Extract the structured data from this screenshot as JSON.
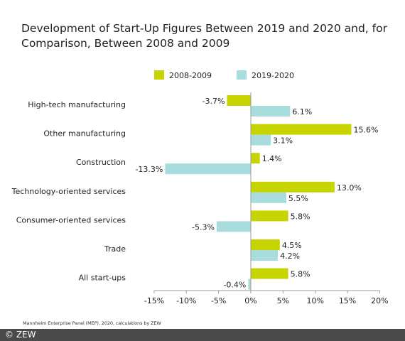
{
  "title": "Development of Start-Up Figures Between 2019 and 2020 and, for Comparison, Between 2008 and 2009",
  "source_note": "Mannheim Enterprise Panel (MEP), 2020, calculations by ZEW",
  "footer": "© ZEW",
  "colors": {
    "series_2008": "#c8d400",
    "series_2019": "#a9dcdc",
    "axis": "#999999",
    "text": "#222222"
  },
  "chart_data": {
    "type": "bar",
    "orientation": "horizontal",
    "title": "Development of Start-Up Figures Between 2019 and 2020 and, for Comparison, Between 2008 and 2009",
    "categories": [
      "High-tech manufacturing",
      "Other manufacturing",
      "Construction",
      "Technology-oriented services",
      "Consumer-oriented services",
      "Trade",
      "All start-ups"
    ],
    "series": [
      {
        "name": "2008-2009",
        "values": [
          -3.7,
          15.6,
          1.4,
          13.0,
          5.8,
          4.5,
          5.8
        ],
        "labels": [
          "-3.7%",
          "15.6%",
          "1.4%",
          "13.0%",
          "5.8%",
          "4.5%",
          "5.8%"
        ]
      },
      {
        "name": "2019-2020",
        "values": [
          6.1,
          3.1,
          -13.3,
          5.5,
          -5.3,
          4.2,
          -0.4
        ],
        "labels": [
          "6.1%",
          "3.1%",
          "-13.3%",
          "5.5%",
          "-5.3%",
          "4.2%",
          "-0.4%"
        ]
      }
    ],
    "xlim": [
      -15,
      20
    ],
    "xticks": [
      -15,
      -10,
      -5,
      0,
      5,
      10,
      15,
      20
    ],
    "xtick_labels": [
      "-15%",
      "-10%",
      "-5%",
      "0%",
      "5%",
      "10%",
      "15%",
      "20%"
    ],
    "legend_position": "top",
    "grid": false
  }
}
